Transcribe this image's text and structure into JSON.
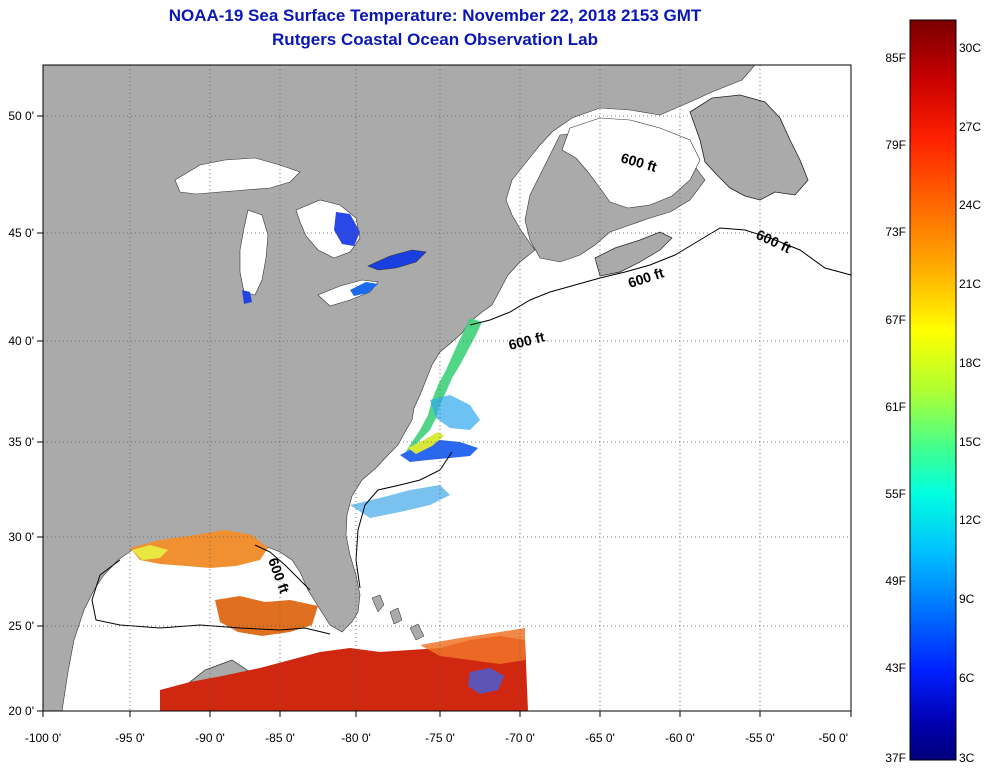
{
  "title": "NOAA-19 Sea Surface Temperature:  November 22, 2018 2153 GMT",
  "subtitle": "Rutgers Coastal Ocean Observation Lab",
  "lon_ticks": [
    "-100 0'",
    "-95 0'",
    "-90 0'",
    "-85 0'",
    "-80 0'",
    "-75 0'",
    "-70 0'",
    "-65 0'",
    "-60 0'",
    "-55 0'",
    "-50 0'"
  ],
  "lat_ticks": [
    "50 0'",
    "45 0'",
    "40 0'",
    "35 0'",
    "30 0'",
    "25 0'",
    "20 0'"
  ],
  "contour_labels": [
    "600 ft",
    "600 ft",
    "600 ft",
    "600 ft",
    "600 ft"
  ],
  "colorbar": {
    "fahrenheit": [
      "85F",
      "79F",
      "73F",
      "67F",
      "61F",
      "55F",
      "49F",
      "43F",
      "37F"
    ],
    "celsius": [
      "30C",
      "27C",
      "24C",
      "21C",
      "18C",
      "15C",
      "12C",
      "9C",
      "6C",
      "3C"
    ],
    "colors_top_to_bottom": [
      "#7a0000",
      "#c80000",
      "#ff2000",
      "#ff7000",
      "#ffb000",
      "#ffff00",
      "#b0ff30",
      "#40ff90",
      "#00ffe0",
      "#00c0ff",
      "#0070ff",
      "#0020ff",
      "#0000b0",
      "#00007a"
    ]
  },
  "colors": {
    "land": "#aaaaaa",
    "ocean": "#ffffff",
    "title": "#0a17b5",
    "grid": "#555555"
  }
}
